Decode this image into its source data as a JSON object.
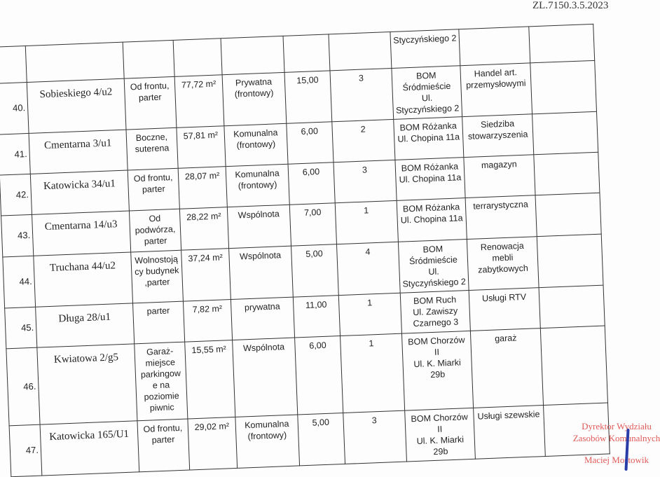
{
  "document_ref": "ZL.7150.3.5.2023",
  "rows": [
    [
      "",
      "",
      "",
      "",
      "",
      "",
      "",
      "Styczyńskiego 2",
      "",
      ""
    ],
    [
      "40.",
      "Sobieskiego 4/u2",
      "Od frontu,\nparter",
      "77,72 m²",
      "Prywatna\n(frontowy)",
      "15,00",
      "3",
      "BOM\nŚródmieście\nUl.\nStyczyńskiego 2",
      "Handel art.\nprzemysłowymi",
      ""
    ],
    [
      "41.",
      "Cmentarna 3/u1",
      "Boczne,\nsuterena",
      "57,81 m²",
      "Komunalna\n(frontowy)",
      "6,00",
      "2",
      "BOM Różanka\nUl. Chopina 11a",
      "Siedziba\nstowarzyszenia",
      ""
    ],
    [
      "42.",
      "Katowicka 34/u1",
      "Od frontu,\nparter",
      "28,07 m²",
      "Komunalna\n(frontowy)",
      "6,00",
      "3",
      "BOM Różanka\nUl. Chopina 11a",
      "magazyn",
      ""
    ],
    [
      "43.",
      "Cmentarna 14/u3",
      "Od\npodwórza,\nparter",
      "28,22 m²",
      "Wspólnota",
      "7,00",
      "1",
      "BOM Różanka\nUl. Chopina 11a",
      "terrarystyczna",
      ""
    ],
    [
      "44.",
      "Truchana 44/u2",
      "Wolnostoją\ncy budynek\n,parter",
      "37,24 m²",
      "Wspólnota",
      "5,00",
      "4",
      "BOM\nŚródmieście\nUl.\nStyczyńskiego 2",
      "Renowacja\nmebli\nzabytkowych",
      ""
    ],
    [
      "45.",
      "Długa 28/u1",
      "parter",
      "7,82 m²",
      "prywatna",
      "11,00",
      "1",
      "BOM Ruch\nUl. Zawiszy\nCzarnego 3",
      "Usługi RTV",
      ""
    ],
    [
      "46.",
      "Kwiatowa 2/g5",
      "Garaż-\nmiejsce\nparkingow\ne na\npoziomie\npiwnic",
      "15,55 m²",
      "Wspólnota",
      "6,00",
      "1",
      "BOM Chorzów II\nUl. K. Miarki 29b",
      "garaż",
      ""
    ],
    [
      "47.",
      "Katowicka 165/U1",
      "Od frontu,\nparter",
      "29,02 m²",
      "Komunalna\n(frontowy)",
      "5,00",
      "3",
      "BOM Chorzów II\nUl. K. Miarki 29b",
      "Usługi szewskie",
      ""
    ]
  ],
  "stamp": {
    "line1": "Dyrektor Wydziału",
    "line2": "Zasobów Komunalnych",
    "name": "Maciej Mostowik"
  },
  "colors": {
    "stamp": "#e05a5a",
    "signature": "#2a3ca8"
  }
}
